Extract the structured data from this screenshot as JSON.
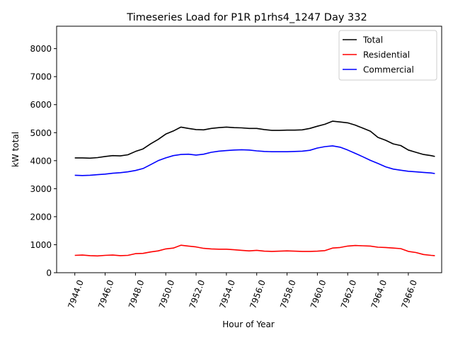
{
  "chart_data": {
    "type": "line",
    "title": "Timeseries Load for P1R p1rhs4_1247  Day 332",
    "xlabel": "Hour of Year",
    "ylabel": "kW total",
    "xlim": [
      7942.8,
      7968.2
    ],
    "ylim": [
      0,
      8800
    ],
    "xticks": [
      7944,
      7946,
      7948,
      7950,
      7952,
      7954,
      7956,
      7958,
      7960,
      7962,
      7964,
      7966
    ],
    "xtick_labels": [
      "7944.0",
      "7946.0",
      "7948.0",
      "7950.0",
      "7952.0",
      "7954.0",
      "7956.0",
      "7958.0",
      "7960.0",
      "7962.0",
      "7964.0",
      "7966.0"
    ],
    "yticks": [
      0,
      1000,
      2000,
      3000,
      4000,
      5000,
      6000,
      7000,
      8000
    ],
    "ytick_labels": [
      "0",
      "1000",
      "2000",
      "3000",
      "4000",
      "5000",
      "6000",
      "7000",
      "8000"
    ],
    "legend_position": "top-right",
    "series": [
      {
        "name": "Total",
        "color": "#000000",
        "x": [
          7944.0,
          7944.5,
          7945.0,
          7945.5,
          7946.0,
          7946.5,
          7947.0,
          7947.5,
          7948.0,
          7948.5,
          7949.0,
          7949.5,
          7950.0,
          7950.5,
          7951.0,
          7951.5,
          7952.0,
          7952.5,
          7953.0,
          7953.5,
          7954.0,
          7954.5,
          7955.0,
          7955.5,
          7956.0,
          7956.5,
          7957.0,
          7957.5,
          7958.0,
          7958.5,
          7959.0,
          7959.5,
          7960.0,
          7960.5,
          7961.0,
          7961.5,
          7962.0,
          7962.5,
          7963.0,
          7963.5,
          7964.0,
          7964.5,
          7965.0,
          7965.5,
          7966.0,
          7966.5,
          7967.0,
          7967.5,
          7967.75
        ],
        "values": [
          4100,
          4100,
          4090,
          4110,
          4150,
          4180,
          4170,
          4210,
          4330,
          4420,
          4600,
          4760,
          4950,
          5060,
          5200,
          5150,
          5110,
          5100,
          5150,
          5180,
          5200,
          5180,
          5170,
          5150,
          5150,
          5110,
          5080,
          5080,
          5090,
          5090,
          5100,
          5150,
          5230,
          5300,
          5410,
          5380,
          5350,
          5270,
          5160,
          5050,
          4830,
          4730,
          4600,
          4540,
          4380,
          4300,
          4220,
          4180,
          4150
        ]
      },
      {
        "name": "Residential",
        "color": "#ff0000",
        "x": [
          7944.0,
          7944.5,
          7945.0,
          7945.5,
          7946.0,
          7946.5,
          7947.0,
          7947.5,
          7948.0,
          7948.5,
          7949.0,
          7949.5,
          7950.0,
          7950.5,
          7951.0,
          7951.5,
          7952.0,
          7952.5,
          7953.0,
          7953.5,
          7954.0,
          7954.5,
          7955.0,
          7955.5,
          7956.0,
          7956.5,
          7957.0,
          7957.5,
          7958.0,
          7958.5,
          7959.0,
          7959.5,
          7960.0,
          7960.5,
          7961.0,
          7961.5,
          7962.0,
          7962.5,
          7963.0,
          7963.5,
          7964.0,
          7964.5,
          7965.0,
          7965.5,
          7966.0,
          7966.5,
          7967.0,
          7967.5,
          7967.75
        ],
        "values": [
          620,
          630,
          610,
          600,
          620,
          630,
          610,
          620,
          680,
          690,
          740,
          780,
          850,
          880,
          980,
          950,
          920,
          870,
          850,
          840,
          840,
          820,
          800,
          780,
          800,
          770,
          760,
          770,
          780,
          770,
          760,
          760,
          770,
          790,
          880,
          900,
          950,
          970,
          960,
          950,
          910,
          900,
          880,
          860,
          760,
          720,
          650,
          620,
          610
        ]
      },
      {
        "name": "Commercial",
        "color": "#0000ff",
        "x": [
          7944.0,
          7944.5,
          7945.0,
          7945.5,
          7946.0,
          7946.5,
          7947.0,
          7947.5,
          7948.0,
          7948.5,
          7949.0,
          7949.5,
          7950.0,
          7950.5,
          7951.0,
          7951.5,
          7952.0,
          7952.5,
          7953.0,
          7953.5,
          7954.0,
          7954.5,
          7955.0,
          7955.5,
          7956.0,
          7956.5,
          7957.0,
          7957.5,
          7958.0,
          7958.5,
          7959.0,
          7959.5,
          7960.0,
          7960.5,
          7961.0,
          7961.5,
          7962.0,
          7962.5,
          7963.0,
          7963.5,
          7964.0,
          7964.5,
          7965.0,
          7965.5,
          7966.0,
          7966.5,
          7967.0,
          7967.5,
          7967.75
        ],
        "values": [
          3480,
          3470,
          3480,
          3500,
          3520,
          3550,
          3570,
          3600,
          3650,
          3720,
          3860,
          4000,
          4100,
          4180,
          4220,
          4230,
          4200,
          4230,
          4300,
          4340,
          4360,
          4380,
          4390,
          4380,
          4350,
          4330,
          4320,
          4320,
          4320,
          4330,
          4340,
          4370,
          4450,
          4500,
          4530,
          4480,
          4380,
          4260,
          4140,
          4010,
          3900,
          3780,
          3700,
          3660,
          3620,
          3600,
          3580,
          3560,
          3540
        ]
      }
    ]
  }
}
